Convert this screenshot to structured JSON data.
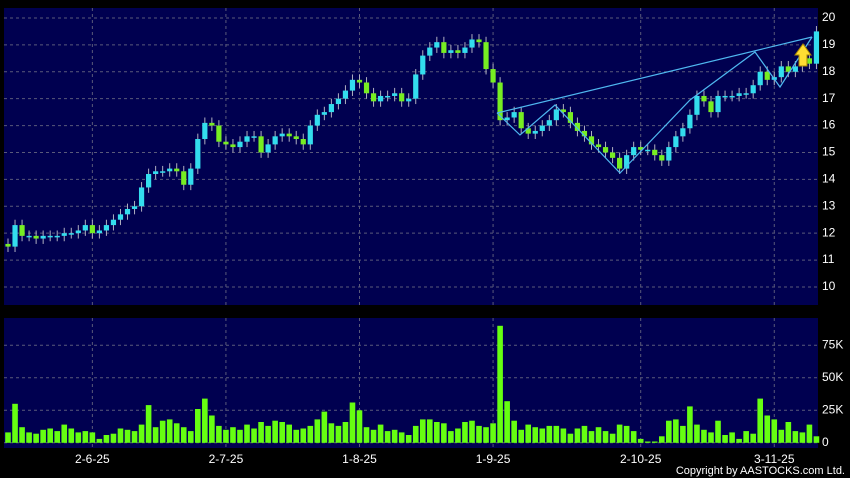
{
  "chart_data": [
    {
      "type": "candlestick",
      "categories": [
        null,
        null,
        null,
        null,
        null,
        null,
        null,
        null,
        null,
        null,
        null,
        null,
        "2-6-25",
        null,
        null,
        null,
        null,
        null,
        null,
        null,
        null,
        null,
        null,
        null,
        null,
        null,
        null,
        null,
        null,
        null,
        null,
        "2-7-25",
        null,
        null,
        null,
        null,
        null,
        null,
        null,
        null,
        null,
        null,
        null,
        null,
        null,
        null,
        null,
        null,
        null,
        null,
        "1-8-25",
        null,
        null,
        null,
        null,
        null,
        null,
        null,
        null,
        null,
        null,
        null,
        null,
        null,
        null,
        null,
        null,
        null,
        null,
        "1-9-25",
        null,
        null,
        null,
        null,
        null,
        null,
        null,
        null,
        null,
        null,
        null,
        null,
        null,
        null,
        null,
        null,
        null,
        null,
        null,
        null,
        "2-10-25",
        null,
        null,
        null,
        null,
        null,
        null,
        null,
        null,
        null,
        null,
        null,
        null,
        null,
        null,
        null,
        null,
        null,
        null,
        "3-11-25",
        null,
        null,
        null,
        null,
        null,
        null
      ],
      "open": [
        11.6,
        11.5,
        12.3,
        11.9,
        11.9,
        11.8,
        11.9,
        11.9,
        11.9,
        12.0,
        12.0,
        12.1,
        12.3,
        12.0,
        12.1,
        12.3,
        12.5,
        12.7,
        12.9,
        13.0,
        13.7,
        14.2,
        14.3,
        14.3,
        14.4,
        14.3,
        13.8,
        14.4,
        15.5,
        16.1,
        16.0,
        15.4,
        15.3,
        15.2,
        15.4,
        15.6,
        15.6,
        15.0,
        15.3,
        15.6,
        15.7,
        15.6,
        15.5,
        15.3,
        16.0,
        16.4,
        16.5,
        16.8,
        17.0,
        17.3,
        17.7,
        17.6,
        17.2,
        16.9,
        17.1,
        17.1,
        17.2,
        16.9,
        17.0,
        17.9,
        18.6,
        18.9,
        19.1,
        18.7,
        18.8,
        18.7,
        18.9,
        19.2,
        19.1,
        18.1,
        17.6,
        16.2,
        16.3,
        16.5,
        15.9,
        15.7,
        15.8,
        16.0,
        16.2,
        16.6,
        16.5,
        16.1,
        15.8,
        15.6,
        15.3,
        15.2,
        15.0,
        14.8,
        14.4,
        14.9,
        15.2,
        15.1,
        15.1,
        14.9,
        14.7,
        15.2,
        15.6,
        15.9,
        16.4,
        17.1,
        16.9,
        16.5,
        17.1,
        17.1,
        17.1,
        17.2,
        17.2,
        17.5,
        18.0,
        17.7,
        17.8,
        18.2,
        18.0,
        18.2,
        18.5,
        18.3
      ],
      "high": [
        11.8,
        12.5,
        12.5,
        12.1,
        12.1,
        12.1,
        12.1,
        12.1,
        12.2,
        12.2,
        12.3,
        12.5,
        12.5,
        12.3,
        12.5,
        12.7,
        12.9,
        13.1,
        13.2,
        13.9,
        14.4,
        14.5,
        14.5,
        14.6,
        14.6,
        14.5,
        14.6,
        15.7,
        16.3,
        16.3,
        16.2,
        15.6,
        15.5,
        15.6,
        15.8,
        15.8,
        15.8,
        15.5,
        15.8,
        15.9,
        15.9,
        15.8,
        15.7,
        16.2,
        16.6,
        16.7,
        17.0,
        17.2,
        17.5,
        17.9,
        17.9,
        17.8,
        17.4,
        17.3,
        17.3,
        17.4,
        17.4,
        17.2,
        18.1,
        18.8,
        19.1,
        19.3,
        19.3,
        19.0,
        19.0,
        19.1,
        19.4,
        19.4,
        19.3,
        18.3,
        17.8,
        16.5,
        16.7,
        16.7,
        16.1,
        16.0,
        16.2,
        16.4,
        16.8,
        16.8,
        16.7,
        16.3,
        16.0,
        15.8,
        15.5,
        15.4,
        15.2,
        15.0,
        15.1,
        15.4,
        15.4,
        15.3,
        15.3,
        15.1,
        15.4,
        15.8,
        16.1,
        16.6,
        17.3,
        17.3,
        17.1,
        17.3,
        17.3,
        17.3,
        17.4,
        17.4,
        17.7,
        18.2,
        18.2,
        18.0,
        18.4,
        18.4,
        18.4,
        18.7,
        18.7,
        19.7
      ],
      "low": [
        11.3,
        11.3,
        11.7,
        11.7,
        11.6,
        11.6,
        11.7,
        11.7,
        11.7,
        11.8,
        11.8,
        11.9,
        11.8,
        11.8,
        11.9,
        12.1,
        12.3,
        12.5,
        12.7,
        12.8,
        13.5,
        14.0,
        14.1,
        14.1,
        14.1,
        13.6,
        13.6,
        14.2,
        15.3,
        15.8,
        15.2,
        15.1,
        15.0,
        15.0,
        15.2,
        15.4,
        14.8,
        14.8,
        15.1,
        15.4,
        15.4,
        15.3,
        15.1,
        15.1,
        15.8,
        16.2,
        16.3,
        16.6,
        16.8,
        17.1,
        17.4,
        17.0,
        16.7,
        16.7,
        16.9,
        16.9,
        16.7,
        16.7,
        16.8,
        17.7,
        18.4,
        18.7,
        18.5,
        18.5,
        18.5,
        18.5,
        18.7,
        18.9,
        17.9,
        17.4,
        16.0,
        16.0,
        16.1,
        15.7,
        15.5,
        15.5,
        15.6,
        15.8,
        16.0,
        16.3,
        15.9,
        15.6,
        15.4,
        15.1,
        15.0,
        14.8,
        14.6,
        14.2,
        14.2,
        14.7,
        14.9,
        14.9,
        14.7,
        14.5,
        14.5,
        15.0,
        15.4,
        15.7,
        16.2,
        16.7,
        16.3,
        16.3,
        16.9,
        16.9,
        16.9,
        17.0,
        17.0,
        17.3,
        17.5,
        17.5,
        17.6,
        17.8,
        17.8,
        18.0,
        18.1,
        18.1
      ],
      "close": [
        11.5,
        12.3,
        11.9,
        11.9,
        11.8,
        11.9,
        11.9,
        11.9,
        12.0,
        12.0,
        12.1,
        12.3,
        12.0,
        12.1,
        12.3,
        12.5,
        12.7,
        12.9,
        13.0,
        13.7,
        14.2,
        14.3,
        14.3,
        14.4,
        14.3,
        13.8,
        14.4,
        15.5,
        16.1,
        16.0,
        15.4,
        15.3,
        15.2,
        15.4,
        15.6,
        15.6,
        15.0,
        15.3,
        15.6,
        15.7,
        15.6,
        15.5,
        15.3,
        16.0,
        16.4,
        16.5,
        16.8,
        17.0,
        17.3,
        17.7,
        17.6,
        17.2,
        16.9,
        17.1,
        17.1,
        17.2,
        16.9,
        17.0,
        17.9,
        18.6,
        18.9,
        19.1,
        18.7,
        18.8,
        18.7,
        18.9,
        19.2,
        19.1,
        18.1,
        17.6,
        16.2,
        16.3,
        16.5,
        15.9,
        15.7,
        15.8,
        16.0,
        16.2,
        16.6,
        16.5,
        16.1,
        15.8,
        15.6,
        15.3,
        15.2,
        15.0,
        14.8,
        14.4,
        14.9,
        15.2,
        15.1,
        15.1,
        14.9,
        14.7,
        15.2,
        15.6,
        15.9,
        16.4,
        17.1,
        16.9,
        16.5,
        17.1,
        17.1,
        17.1,
        17.2,
        17.2,
        17.5,
        18.0,
        17.7,
        17.8,
        18.2,
        18.0,
        18.2,
        18.5,
        18.3,
        19.5
      ],
      "up_color": "#33ddee",
      "down_color": "#77ee22",
      "ylim": [
        9.33,
        20.37
      ],
      "yticks": [
        10,
        11,
        12,
        13,
        14,
        15,
        16,
        17,
        18,
        19,
        20
      ],
      "grid": true
    },
    {
      "type": "bar",
      "values": [
        8000,
        30000,
        12000,
        8000,
        7000,
        10000,
        11000,
        9000,
        14000,
        11000,
        8000,
        9000,
        8000,
        3000,
        6000,
        7000,
        11000,
        10000,
        9000,
        14000,
        29000,
        12000,
        17000,
        18000,
        15000,
        12000,
        9000,
        26000,
        34000,
        21000,
        13000,
        10000,
        12000,
        10000,
        14000,
        11000,
        16000,
        13000,
        17000,
        16000,
        14000,
        10000,
        11000,
        13000,
        18000,
        24000,
        15000,
        13000,
        16000,
        31000,
        25000,
        12000,
        10000,
        14000,
        9000,
        10000,
        8000,
        6000,
        13000,
        18000,
        18000,
        16000,
        15000,
        9000,
        11000,
        16000,
        17000,
        13000,
        12000,
        15000,
        90000,
        32000,
        17000,
        10000,
        14000,
        12000,
        11000,
        13000,
        13000,
        11000,
        7000,
        11000,
        13000,
        9000,
        12000,
        9000,
        7000,
        14000,
        13000,
        9000,
        3000,
        1000,
        1000,
        5000,
        17000,
        18000,
        13000,
        28000,
        14000,
        10000,
        8000,
        17000,
        6000,
        8000,
        3000,
        9000,
        7000,
        34000,
        21000,
        18000,
        10000,
        16000,
        9000,
        8000,
        14000,
        5000
      ],
      "color": "#66ff11",
      "ylim": [
        -4000,
        96000
      ],
      "yticks": [
        {
          "value": 0,
          "label": "0"
        },
        {
          "value": 25000,
          "label": "25K"
        },
        {
          "value": 50000,
          "label": "50K"
        },
        {
          "value": 75000,
          "label": "75K"
        }
      ],
      "grid": true
    }
  ],
  "footer": "Copyright by AASTOCKS.com Ltd."
}
